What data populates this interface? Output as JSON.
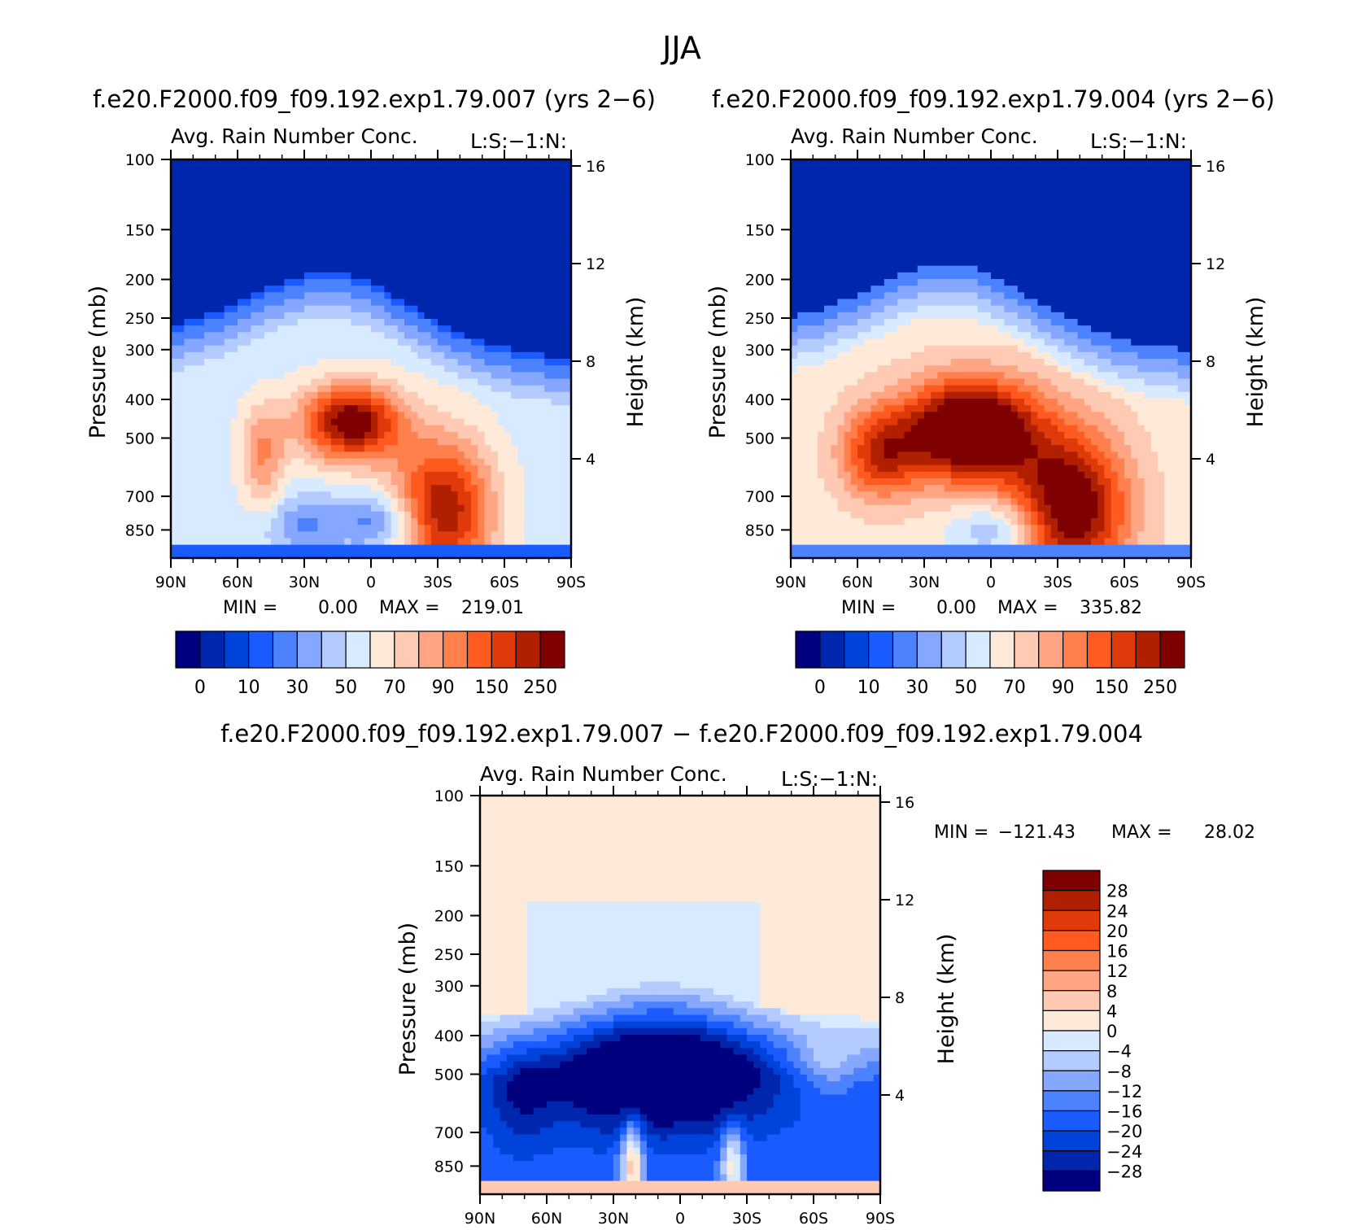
{
  "page": {
    "main_title": "JJA"
  },
  "colors": {
    "abs_palette": [
      "#00007f",
      "#0026ad",
      "#0043db",
      "#1a5bff",
      "#4d82ff",
      "#86a7ff",
      "#b3cbff",
      "#d8eaff",
      "#ffe9d8",
      "#ffcab3",
      "#ffa583",
      "#ff7f4d",
      "#ff5a1f",
      "#e03a0a",
      "#b01f00",
      "#7f0000"
    ],
    "diff_palette": [
      "#00007f",
      "#0026ad",
      "#0043db",
      "#1a5bff",
      "#4d82ff",
      "#86a7ff",
      "#b3cbff",
      "#d8eaff",
      "#ffe9d8",
      "#ffcab3",
      "#ffa583",
      "#ff7f4d",
      "#ff5a1f",
      "#e03a0a",
      "#b01f00",
      "#7f0000"
    ]
  },
  "chart_data": [
    {
      "type": "heatmap",
      "panel": "top-left",
      "case_title": "f.e20.F2000.f09_f09.192.exp1.79.007 (yrs 2−6)",
      "title": "Avg. Rain Number Conc.",
      "code": "L:S:−1:N:",
      "xlabel": "",
      "ylabel": "Pressure (mb)",
      "y2label": "Height (km)",
      "x_ticks": [
        "90N",
        "60N",
        "30N",
        "0",
        "30S",
        "60S",
        "90S"
      ],
      "y_ticks": [
        "100",
        "150",
        "200",
        "250",
        "300",
        "400",
        "500",
        "700",
        "850"
      ],
      "y2_ticks": [
        "16",
        "12",
        "8",
        "4"
      ],
      "stats": {
        "min_label": "MIN =",
        "min_value": "0.00",
        "max_label": "MAX =",
        "max_value": "219.01"
      },
      "colorbar": {
        "orientation": "horizontal",
        "labels": [
          "0",
          "10",
          "30",
          "50",
          "70",
          "90",
          "150",
          "250"
        ]
      }
    },
    {
      "type": "heatmap",
      "panel": "top-right",
      "case_title": "f.e20.F2000.f09_f09.192.exp1.79.004 (yrs 2−6)",
      "title": "Avg. Rain Number Conc.",
      "code": "L:S:−1:N:",
      "xlabel": "",
      "ylabel": "Pressure (mb)",
      "y2label": "Height (km)",
      "x_ticks": [
        "90N",
        "60N",
        "30N",
        "0",
        "30S",
        "60S",
        "90S"
      ],
      "y_ticks": [
        "100",
        "150",
        "200",
        "250",
        "300",
        "400",
        "500",
        "700",
        "850"
      ],
      "y2_ticks": [
        "16",
        "12",
        "8",
        "4"
      ],
      "stats": {
        "min_label": "MIN =",
        "min_value": "0.00",
        "max_label": "MAX =",
        "max_value": "335.82"
      },
      "colorbar": {
        "orientation": "horizontal",
        "labels": [
          "0",
          "10",
          "30",
          "50",
          "70",
          "90",
          "150",
          "250"
        ]
      }
    },
    {
      "type": "heatmap",
      "panel": "bottom",
      "case_title": "f.e20.F2000.f09_f09.192.exp1.79.007 − f.e20.F2000.f09_f09.192.exp1.79.004",
      "title": "Avg. Rain Number Conc.",
      "code": "L:S:−1:N:",
      "xlabel": "",
      "ylabel": "Pressure (mb)",
      "y2label": "Height (km)",
      "x_ticks": [
        "90N",
        "60N",
        "30N",
        "0",
        "30S",
        "60S",
        "90S"
      ],
      "y_ticks": [
        "100",
        "150",
        "200",
        "250",
        "300",
        "400",
        "500",
        "700",
        "850"
      ],
      "y2_ticks": [
        "16",
        "12",
        "8",
        "4"
      ],
      "stats": {
        "min_label": "MIN =",
        "min_value": "−121.43",
        "max_label": "MAX =",
        "max_value": "28.02"
      },
      "colorbar": {
        "orientation": "vertical",
        "labels": [
          "28",
          "24",
          "20",
          "16",
          "12",
          "8",
          "4",
          "0",
          "−4",
          "−8",
          "−12",
          "−16",
          "−20",
          "−24",
          "−28"
        ]
      }
    }
  ]
}
